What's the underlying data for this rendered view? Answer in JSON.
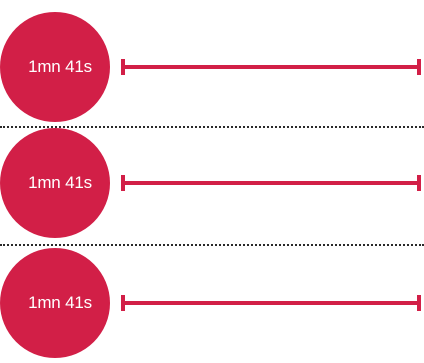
{
  "colors": {
    "accent": "#d21f47",
    "divider": "#2a2a2a",
    "background": "#ffffff"
  },
  "items": [
    {
      "duration_label": "1mn 41s"
    },
    {
      "duration_label": "1mn 41s"
    },
    {
      "duration_label": "1mn 41s"
    }
  ]
}
